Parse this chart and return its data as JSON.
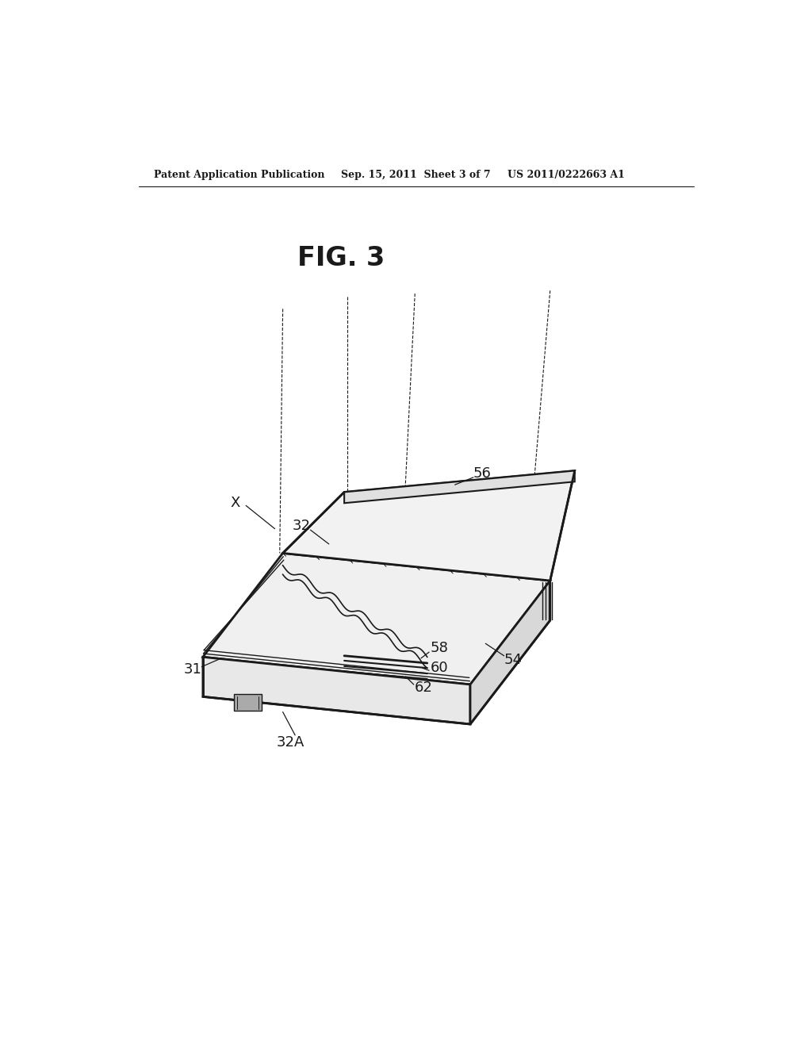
{
  "title": "FIG. 3",
  "header_left": "Patent Application Publication",
  "header_center": "Sep. 15, 2011  Sheet 3 of 7",
  "header_right": "US 2011/0222663 A1",
  "bg_color": "#ffffff",
  "line_color": "#1a1a1a"
}
